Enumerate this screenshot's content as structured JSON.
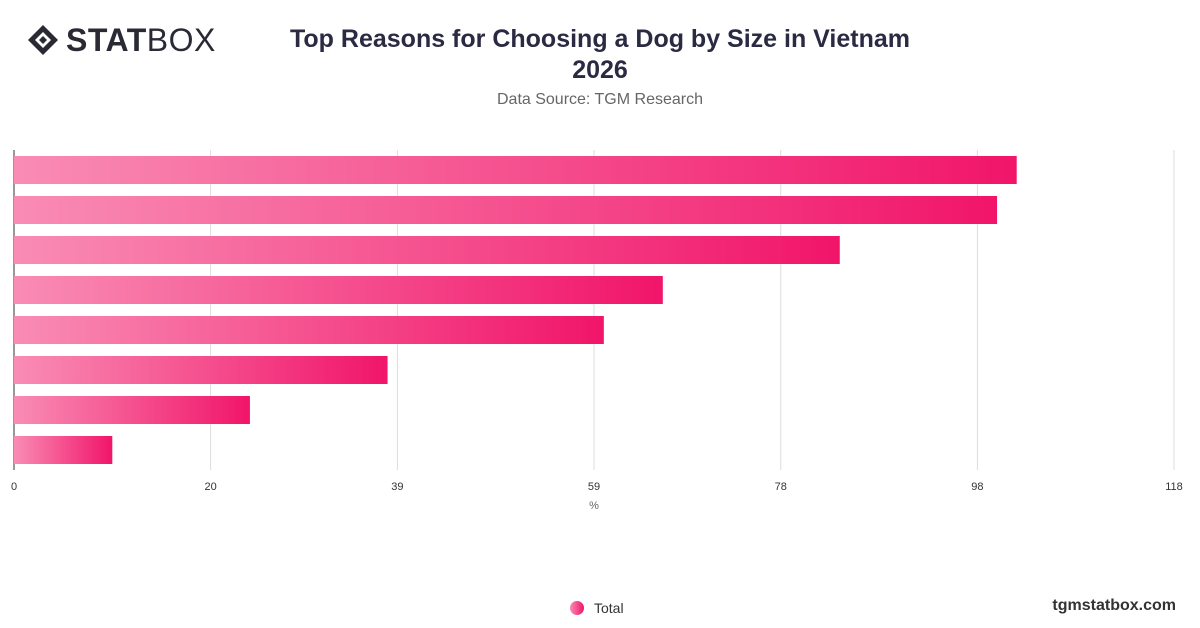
{
  "brand": {
    "bold": "STAT",
    "light": "BOX"
  },
  "title_line1": "Top Reasons for Choosing a Dog by Size in Vietnam",
  "title_line2": "2026",
  "subtitle": "Data Source: TGM Research",
  "legend": {
    "label": "Total",
    "color": "#f1156a"
  },
  "footer": "tgmstatbox.com",
  "colors": {
    "bar_start": "#f98cb4",
    "bar_end": "#f1156a",
    "grid": "#dddddd",
    "axis": "#333333"
  },
  "chart_data": {
    "type": "bar",
    "orientation": "horizontal",
    "title": "Top Reasons for Choosing a Dog by Size in Vietnam 2026",
    "xlabel": "%",
    "ylabel": "",
    "categories": [
      "",
      "",
      "",
      "",
      "",
      "",
      "",
      ""
    ],
    "series": [
      {
        "name": "Total",
        "values": [
          102,
          100,
          84,
          66,
          60,
          38,
          24,
          10
        ]
      }
    ],
    "xlim": [
      0,
      118
    ],
    "xticks": [
      0,
      20,
      39,
      59,
      78,
      98,
      118
    ],
    "grid": "vertical",
    "legend_position": "bottom-center"
  }
}
